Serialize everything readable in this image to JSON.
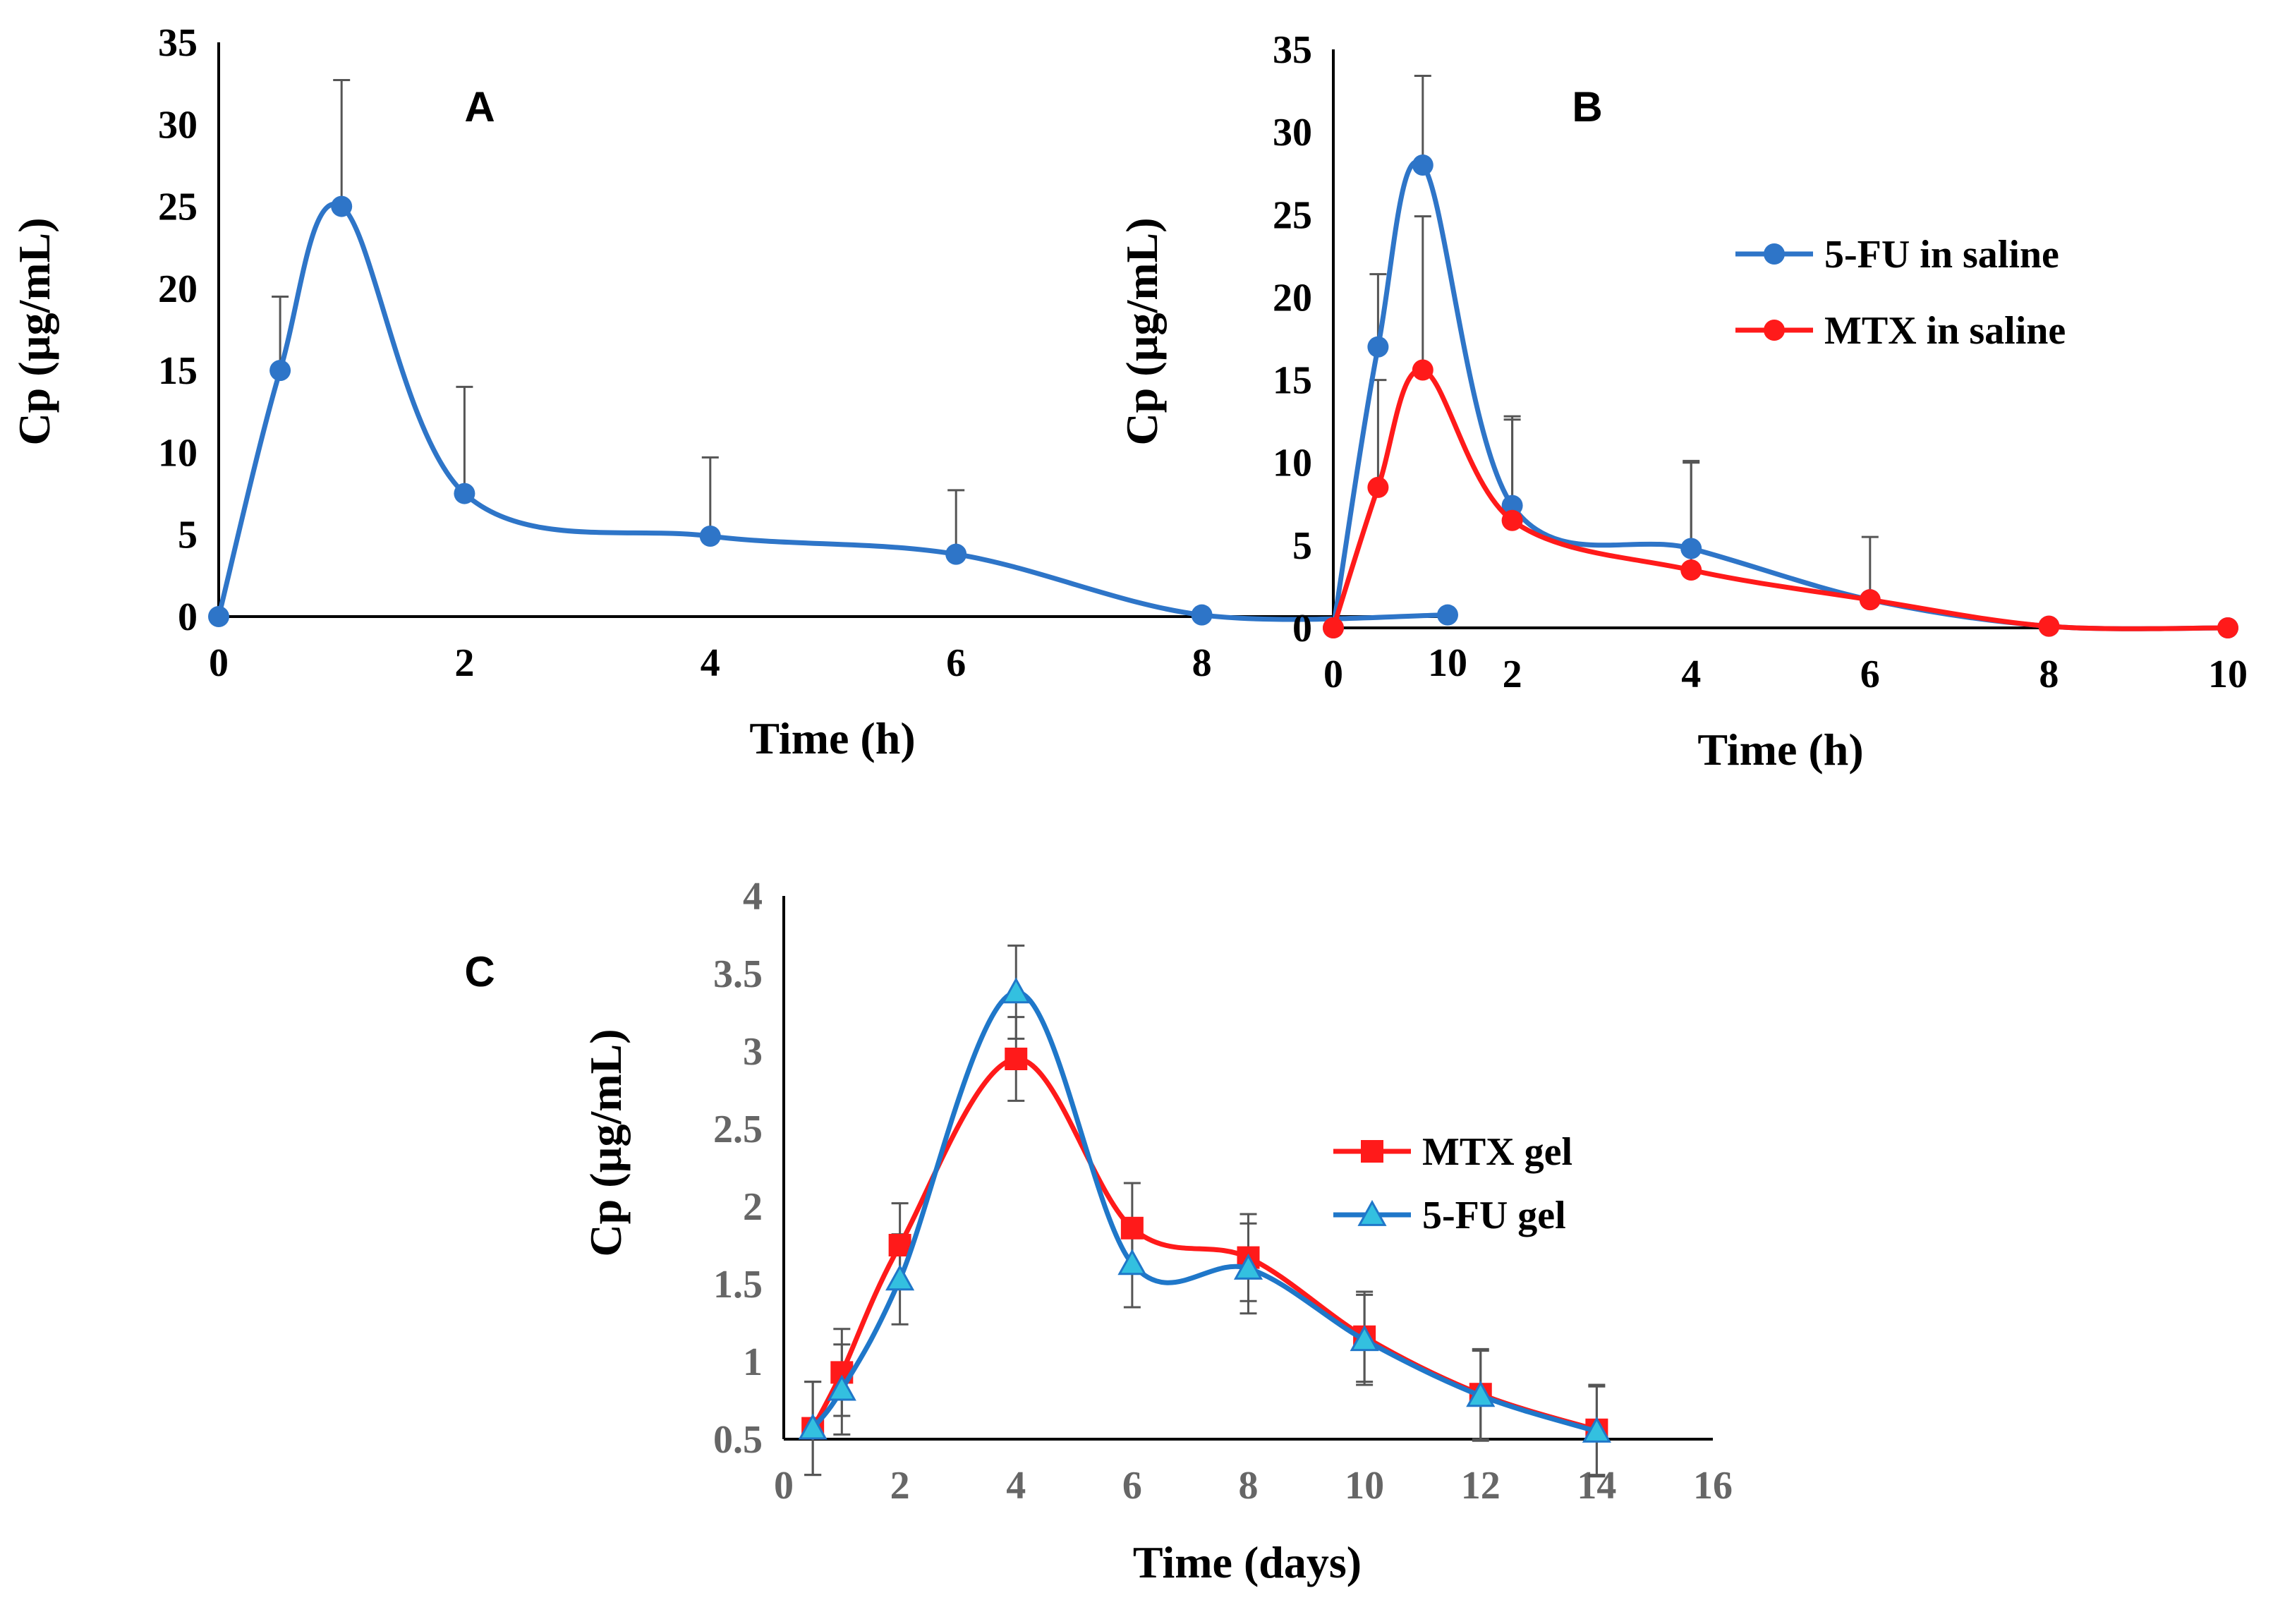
{
  "chart_data": [
    {
      "id": "A",
      "type": "line",
      "panel_label": "A",
      "xlabel": "Time (h)",
      "ylabel": "Cp (µg/mL)",
      "xlim": [
        0,
        10
      ],
      "ylim": [
        0,
        35
      ],
      "xticks": [
        0,
        2,
        4,
        6,
        8,
        10
      ],
      "yticks": [
        0,
        5,
        10,
        15,
        20,
        25,
        30,
        35
      ],
      "legend": "none",
      "series": [
        {
          "name": "5-FU in saline",
          "color": "#2e75c8",
          "marker": "circle",
          "x": [
            0,
            0.5,
            1,
            2,
            4,
            6,
            8,
            10
          ],
          "y": [
            0,
            15,
            25,
            7.5,
            4.9,
            3.8,
            0.1,
            0.1
          ],
          "err": [
            0,
            4.5,
            7.7,
            6.5,
            4.8,
            3.9,
            0,
            0
          ]
        }
      ]
    },
    {
      "id": "B",
      "type": "line",
      "panel_label": "B",
      "xlabel": "Time (h)",
      "ylabel": "Cp (µg/mL)",
      "xlim": [
        0,
        10
      ],
      "ylim": [
        0,
        35
      ],
      "xticks": [
        0,
        2,
        4,
        6,
        8,
        10
      ],
      "yticks": [
        0,
        5,
        10,
        15,
        20,
        25,
        30,
        35
      ],
      "legend": "right",
      "series": [
        {
          "name": "5-FU in saline",
          "color": "#2e75c8",
          "marker": "circle",
          "x": [
            0,
            0.5,
            1,
            2,
            4,
            6,
            8,
            10
          ],
          "y": [
            0,
            17,
            28,
            7.4,
            4.8,
            1.7,
            0.1,
            0
          ],
          "err": [
            0,
            4.4,
            5.4,
            5.2,
            5.3,
            3.8,
            0,
            0
          ]
        },
        {
          "name": "MTX in saline",
          "color": "#ff1a1a",
          "marker": "circle",
          "x": [
            0,
            0.5,
            1,
            2,
            4,
            6,
            8,
            10
          ],
          "y": [
            0,
            8.5,
            15.6,
            6.5,
            3.5,
            1.7,
            0.1,
            0
          ],
          "err": [
            0,
            6.5,
            9.3,
            6.3,
            6.5,
            0,
            0,
            0
          ]
        }
      ]
    },
    {
      "id": "C",
      "type": "line",
      "panel_label": "C",
      "xlabel": "Time (days)",
      "ylabel": "Cp (µg/mL)",
      "xlim": [
        0,
        16
      ],
      "ylim": [
        0.5,
        4
      ],
      "xticks": [
        0,
        2,
        4,
        6,
        8,
        10,
        12,
        14,
        16
      ],
      "yticks": [
        0.5,
        1,
        1.5,
        2,
        2.5,
        3,
        3.5,
        4
      ],
      "legend": "center-right",
      "series": [
        {
          "name": "MTX gel",
          "color": "#ff1a1a",
          "marker": "square",
          "x": [
            0.5,
            1,
            2,
            4,
            6,
            8,
            10,
            12,
            14
          ],
          "y": [
            0.57,
            0.93,
            1.75,
            2.95,
            1.86,
            1.67,
            1.16,
            0.79,
            0.56
          ],
          "err": [
            0.3,
            0.28,
            0.27,
            0.27,
            0.29,
            0.28,
            0.29,
            0.29,
            0.29
          ]
        },
        {
          "name": "5-FU gel",
          "color": "#1f77c9",
          "fill": "#33c0e0",
          "marker": "triangle",
          "x": [
            0.5,
            1,
            2,
            4,
            6,
            8,
            10,
            12,
            14
          ],
          "y": [
            0.57,
            0.82,
            1.53,
            3.38,
            1.63,
            1.6,
            1.14,
            0.78,
            0.55
          ],
          "err": [
            0.3,
            0.29,
            0.29,
            0.3,
            0.28,
            0.29,
            0.29,
            0.29,
            0.29
          ]
        }
      ]
    }
  ]
}
